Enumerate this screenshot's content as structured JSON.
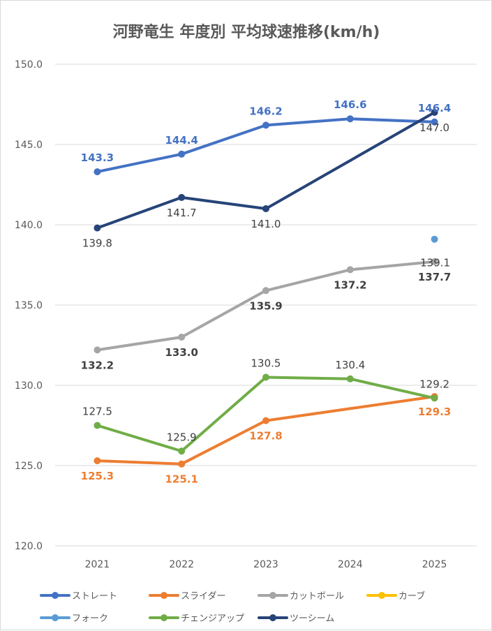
{
  "chart_data": {
    "type": "line",
    "title": "河野竜生 年度別 平均球速推移(km/h)",
    "xlabel": "",
    "ylabel": "",
    "categories": [
      "2021",
      "2022",
      "2023",
      "2024",
      "2025"
    ],
    "ylim": [
      120,
      150
    ],
    "yticks": [
      "120.0",
      "125.0",
      "130.0",
      "135.0",
      "140.0",
      "145.0",
      "150.0"
    ],
    "grid": true,
    "legend_position": "bottom",
    "series": [
      {
        "name": "ストレート",
        "color": "#4472C4",
        "values": [
          143.3,
          144.4,
          146.2,
          146.6,
          146.4
        ],
        "labels": [
          "143.3",
          "144.4",
          "146.2",
          "146.6",
          "146.4"
        ],
        "label_color": "#4472C4",
        "label_bold": true,
        "label_pos": "above"
      },
      {
        "name": "スライダー",
        "color": "#ED7D31",
        "values": [
          125.3,
          125.1,
          127.8,
          null,
          129.3
        ],
        "labels": [
          "125.3",
          "125.1",
          "127.8",
          null,
          "129.3"
        ],
        "label_color": "#ED7D31",
        "label_bold": true,
        "label_pos": "below"
      },
      {
        "name": "カットボール",
        "color": "#A5A5A5",
        "values": [
          132.2,
          133.0,
          135.9,
          137.2,
          137.7
        ],
        "labels": [
          "132.2",
          "133.0",
          "135.9",
          "137.2",
          "137.7"
        ],
        "label_color": "#404040",
        "label_bold": true,
        "label_pos": "below"
      },
      {
        "name": "カーブ",
        "color": "#FFC000",
        "values": [
          null,
          null,
          null,
          null,
          null
        ],
        "labels": [
          null,
          null,
          null,
          null,
          null
        ],
        "label_color": "#FFC000",
        "label_bold": false,
        "label_pos": "above"
      },
      {
        "name": "フォーク",
        "color": "#5B9BD5",
        "values": [
          null,
          null,
          null,
          null,
          139.1
        ],
        "labels": [
          null,
          null,
          null,
          null,
          "139.1"
        ],
        "label_color": "#404040",
        "label_bold": false,
        "label_pos": "right"
      },
      {
        "name": "チェンジアップ",
        "color": "#70AD47",
        "values": [
          127.5,
          125.9,
          130.5,
          130.4,
          129.2
        ],
        "labels": [
          "127.5",
          "125.9",
          "130.5",
          "130.4",
          "129.2"
        ],
        "label_color": "#404040",
        "label_bold": false,
        "label_pos": "above"
      },
      {
        "name": "ツーシーム",
        "color": "#264478",
        "values": [
          139.8,
          141.7,
          141.0,
          null,
          147.0
        ],
        "labels": [
          "139.8",
          "141.7",
          "141.0",
          null,
          "147.0"
        ],
        "label_color": "#404040",
        "label_bold": false,
        "label_pos": "below"
      }
    ]
  }
}
